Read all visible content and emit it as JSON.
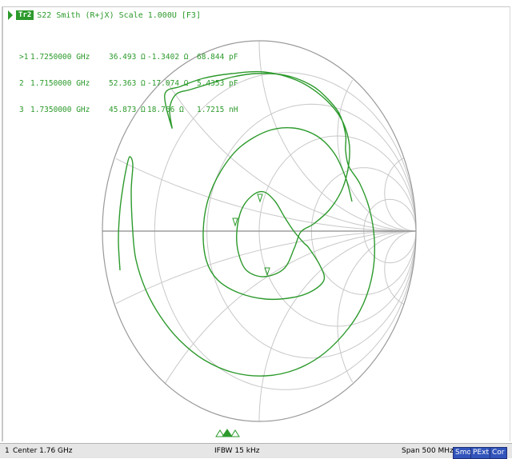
{
  "trace": {
    "badge": "Tr2",
    "header": "S22 Smith (R+jX) Scale 1.000U [F3]"
  },
  "markers": [
    {
      "id": ">1",
      "freq": "1.7250000 GHz",
      "r": "36.493 Ω",
      "x": "-1.3402 Ω",
      "equiv": "68.844 pF"
    },
    {
      "id": "2",
      "freq": "1.7150000 GHz",
      "r": "52.363 Ω",
      "x": "-17.074 Ω",
      "equiv": "5.4353 pF"
    },
    {
      "id": "3",
      "freq": "1.7350000 GHz",
      "r": "45.873 Ω",
      "x": "18.766 Ω",
      "equiv": "1.7215 nH"
    }
  ],
  "status": {
    "channel": "1",
    "center": "Center 1.76 GHz",
    "ifbw": "IFBW 15 kHz",
    "span": "Span 500 MHz",
    "btn_smo": "Smo",
    "btn_pext": "PExt",
    "btn_cor": "Cor"
  },
  "colors": {
    "trace": "#2c9a2c",
    "grid": "#c8c8c8",
    "axis": "#9a9a9a"
  }
}
